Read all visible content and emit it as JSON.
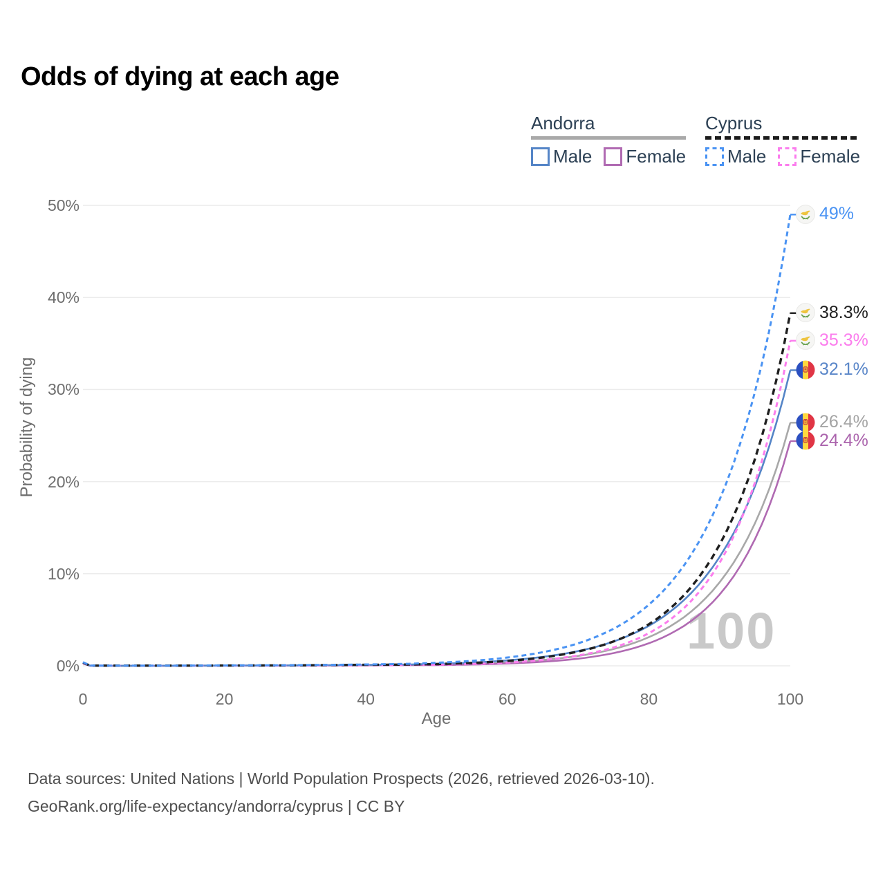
{
  "title": "Odds of dying at each age",
  "legend": {
    "groups": [
      {
        "country": "Andorra",
        "style": "solid",
        "underline_color": "#a9a9a9",
        "items": [
          {
            "label": "Male",
            "color": "#5585c7"
          },
          {
            "label": "Female",
            "color": "#b06ab2"
          }
        ]
      },
      {
        "country": "Cyprus",
        "style": "dashed",
        "underline_color": "#1c1c1c",
        "items": [
          {
            "label": "Male",
            "color": "#4a93f3"
          },
          {
            "label": "Female",
            "color": "#fb7ded"
          }
        ]
      }
    ]
  },
  "chart_data": {
    "type": "line",
    "title": "Odds of dying at each age",
    "xlabel": "Age",
    "ylabel": "Probability of dying",
    "xlim": [
      0,
      100
    ],
    "ylim": [
      0,
      50
    ],
    "grid": "horizontal",
    "watermark": "100",
    "x_ticks": [
      {
        "value": 0,
        "label": "0"
      },
      {
        "value": 20,
        "label": "20"
      },
      {
        "value": 40,
        "label": "40"
      },
      {
        "value": 60,
        "label": "60"
      },
      {
        "value": 80,
        "label": "80"
      },
      {
        "value": 100,
        "label": "100"
      }
    ],
    "y_ticks": [
      {
        "value": 0,
        "label": "0%"
      },
      {
        "value": 10,
        "label": "10%"
      },
      {
        "value": 20,
        "label": "20%"
      },
      {
        "value": 30,
        "label": "30%"
      },
      {
        "value": 40,
        "label": "40%"
      },
      {
        "value": 50,
        "label": "50%"
      }
    ],
    "ages": [
      0,
      1,
      5,
      10,
      15,
      20,
      25,
      30,
      35,
      40,
      45,
      50,
      55,
      60,
      65,
      70,
      75,
      80,
      85,
      90,
      95,
      100
    ],
    "series": [
      {
        "name": "Andorra Both sexes",
        "country": "Andorra",
        "sex": "Both",
        "color": "#a8a8a8",
        "label_color": "#a3a3a3",
        "dash": "",
        "width": 2.6,
        "end_label": "26.4%",
        "flag": "andorra",
        "values": [
          0.3,
          0.02,
          0.01,
          0.01,
          0.02,
          0.02,
          0.03,
          0.04,
          0.05,
          0.08,
          0.1,
          0.13,
          0.22,
          0.37,
          0.63,
          1.07,
          1.82,
          3.11,
          5.3,
          9.06,
          15.46,
          26.4
        ]
      },
      {
        "name": "Andorra Female",
        "country": "Andorra",
        "sex": "Female",
        "color": "#b06ab2",
        "label_color": "#ab64ad",
        "dash": "",
        "width": 2.6,
        "end_label": "24.4%",
        "flag": "andorra",
        "values": [
          0.25,
          0.01,
          0.01,
          0.01,
          0.01,
          0.02,
          0.02,
          0.03,
          0.04,
          0.06,
          0.07,
          0.08,
          0.14,
          0.25,
          0.44,
          0.77,
          1.38,
          2.45,
          4.35,
          7.73,
          13.74,
          24.4
        ]
      },
      {
        "name": "Andorra Male",
        "country": "Andorra",
        "sex": "Male",
        "color": "#5585c7",
        "label_color": "#5b87c9",
        "dash": "",
        "width": 2.6,
        "end_label": "32.1%",
        "flag": "andorra",
        "values": [
          0.35,
          0.02,
          0.01,
          0.01,
          0.02,
          0.03,
          0.03,
          0.05,
          0.07,
          0.1,
          0.13,
          0.22,
          0.35,
          0.59,
          0.97,
          1.6,
          2.64,
          4.34,
          7.16,
          11.81,
          19.47,
          32.1
        ]
      },
      {
        "name": "Cyprus Female",
        "country": "Cyprus",
        "sex": "Female",
        "color": "#fb7ded",
        "label_color": "#fb7ded",
        "dash": "7 5",
        "width": 3,
        "end_label": "35.3%",
        "flag": "cyprus",
        "values": [
          0.3,
          0.02,
          0.01,
          0.01,
          0.01,
          0.02,
          0.02,
          0.03,
          0.04,
          0.05,
          0.08,
          0.11,
          0.2,
          0.35,
          0.63,
          1.12,
          1.99,
          3.54,
          6.29,
          11.18,
          19.87,
          35.3
        ]
      },
      {
        "name": "Cyprus Both sexes",
        "country": "Cyprus",
        "sex": "Both",
        "color": "#1f1f1f",
        "label_color": "#1f1f1f",
        "dash": "9 6",
        "width": 3.4,
        "end_label": "38.3%",
        "flag": "cyprus",
        "values": [
          0.35,
          0.02,
          0.02,
          0.02,
          0.02,
          0.03,
          0.04,
          0.05,
          0.08,
          0.11,
          0.13,
          0.19,
          0.31,
          0.53,
          0.91,
          1.55,
          2.64,
          4.51,
          7.69,
          13.14,
          22.43,
          38.3
        ]
      },
      {
        "name": "Cyprus Male",
        "country": "Cyprus",
        "sex": "Male",
        "color": "#4a93f3",
        "label_color": "#4a93f3",
        "dash": "7 5",
        "width": 3,
        "end_label": "49%",
        "flag": "cyprus",
        "values": [
          0.4,
          0.03,
          0.02,
          0.02,
          0.03,
          0.04,
          0.05,
          0.07,
          0.1,
          0.15,
          0.2,
          0.33,
          0.54,
          0.9,
          1.48,
          2.44,
          4.02,
          6.63,
          10.93,
          18.03,
          29.72,
          49.0
        ]
      }
    ]
  },
  "footer": {
    "line1": "Data sources: United Nations | World Population Prospects (2026, retrieved 2026-03-10).",
    "line2": "GeoRank.org/life-expectancy/andorra/cyprus | CC BY"
  }
}
